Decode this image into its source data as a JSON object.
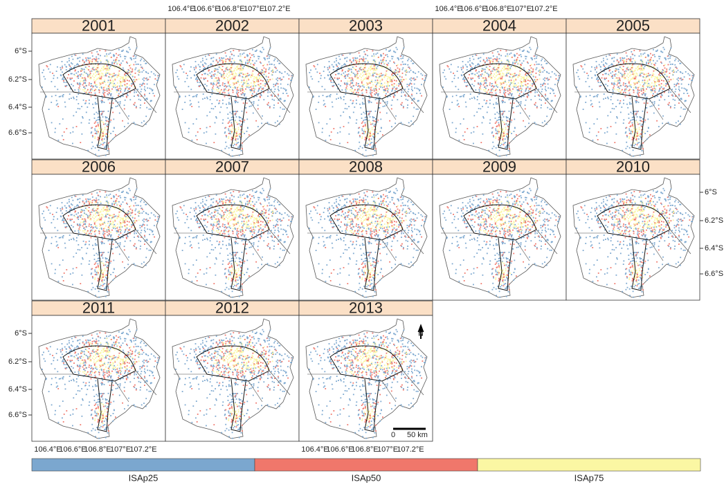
{
  "years": [
    "2001",
    "2002",
    "2003",
    "2004",
    "2005",
    "2006",
    "2007",
    "2008",
    "2009",
    "2010",
    "2011",
    "2012",
    "2013"
  ],
  "x_labels": [
    "106.4°E",
    "106.6°E",
    "106.8°E",
    "107°E",
    "107.2°E"
  ],
  "y_labels": [
    "6°S",
    "6.2°S",
    "6.4°S",
    "6.6°S"
  ],
  "legend": [
    {
      "label": "ISAp25",
      "color": "#7ba7cf"
    },
    {
      "label": "ISAp50",
      "color": "#f0776b"
    },
    {
      "label": "ISAp75",
      "color": "#fbf7a3"
    }
  ],
  "scale_bar": {
    "start": "0",
    "end": "50 km"
  },
  "north": "N"
}
